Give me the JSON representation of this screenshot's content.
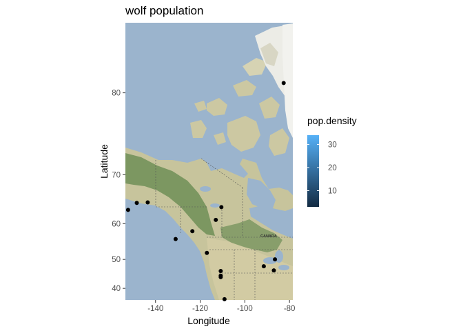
{
  "title": "wolf population",
  "xaxis": {
    "label": "Longitude",
    "ticks": [
      -140,
      -120,
      -100,
      -80
    ],
    "range": [
      -153.5,
      -78.5
    ]
  },
  "yaxis": {
    "label": "Latitude",
    "ticks": [
      40,
      50,
      60,
      70,
      80
    ],
    "range": [
      35.5,
      84.5
    ],
    "projection": "mercator"
  },
  "legend": {
    "title": "pop.density",
    "ticks": [
      10,
      20,
      30
    ],
    "range": [
      3,
      34
    ],
    "color_low": "#132b43",
    "color_high": "#56b1f7",
    "placement": "right"
  },
  "basemap": {
    "water_color": "#9bb4cd",
    "land_color": "#c9c6a0",
    "forest_color": "#6f8f56",
    "ice_color": "#f2f2ef",
    "map_label": "CANADA"
  },
  "chart_data": {
    "type": "scatter",
    "x_label": "Longitude",
    "y_label": "Latitude",
    "points": [
      {
        "x": -82.6,
        "y": 80.8
      },
      {
        "x": -152.3,
        "y": 63.2
      },
      {
        "x": -148.4,
        "y": 64.7
      },
      {
        "x": -143.5,
        "y": 64.8
      },
      {
        "x": -110.5,
        "y": 63.8
      },
      {
        "x": -113.0,
        "y": 60.9
      },
      {
        "x": -123.5,
        "y": 58.1
      },
      {
        "x": -131.0,
        "y": 56.0
      },
      {
        "x": -117.0,
        "y": 52.0
      },
      {
        "x": -86.5,
        "y": 50.0
      },
      {
        "x": -91.5,
        "y": 47.8
      },
      {
        "x": -87.0,
        "y": 46.4
      },
      {
        "x": -110.8,
        "y": 46.2
      },
      {
        "x": -110.8,
        "y": 44.6
      },
      {
        "x": -110.8,
        "y": 44.1
      },
      {
        "x": -109.1,
        "y": 35.8
      }
    ]
  }
}
